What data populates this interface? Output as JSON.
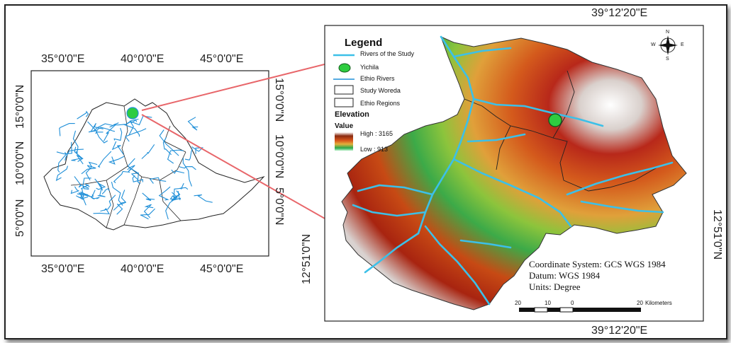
{
  "left_map": {
    "top_ticks": [
      "35°0'0\"E",
      "40°0'0\"E",
      "45°0'0\"E"
    ],
    "bottom_ticks": [
      "35°0'0\"E",
      "40°0'0\"E",
      "45°0'0\"E"
    ],
    "left_ticks": [
      "15°0'0\"N",
      "10°0'0\"N",
      "5°0'0\"N"
    ],
    "right_ticks": [
      "15°0'0\"N",
      "10°0'0\"N",
      "5°0'0\"N"
    ]
  },
  "right_map": {
    "top_tick": "39°12'20\"E",
    "bottom_tick": "39°12'20\"E",
    "left_tick": "12°51'0\"N",
    "right_tick": "12°51'0\"N"
  },
  "legend": {
    "title": "Legend",
    "items": [
      "Rivers of the Study",
      "Yichila",
      "Ethio Rivers",
      "Study Woreda",
      "Ethio Regions"
    ],
    "elevation_title": "Elevation",
    "value_title": "Value",
    "high": "High : 3165",
    "low": "Low : 913"
  },
  "info": {
    "coord": "Coordinate System: GCS WGS 1984",
    "datum": "Datum: WGS 1984",
    "units": "Units: Degree"
  },
  "scale": {
    "labels": [
      "20",
      "10",
      "0",
      "20"
    ],
    "unit": "Kilometers"
  },
  "north_arrow": {
    "n": "N",
    "s": "S",
    "e": "E",
    "w": "W"
  },
  "colors": {
    "river": "#3cc0e8",
    "ethio_river": "#1f8fd8",
    "arrow": "#e8666a",
    "site": "#2ecc40",
    "elev_high": "#ffffff",
    "elev_mid": "#c23a10",
    "elev_low": "#2aa84a"
  }
}
